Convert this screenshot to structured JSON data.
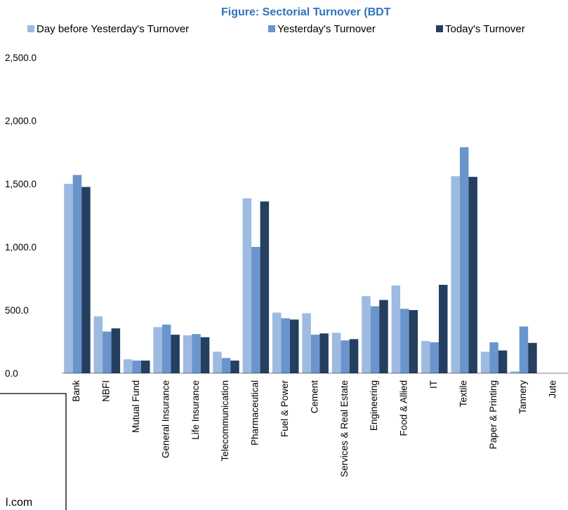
{
  "chart_data": {
    "type": "bar",
    "title": "Figure: Sectorial Turnover (BDT",
    "categories": [
      "Bank",
      "NBFI",
      "Mutual Fund",
      "General Insurance",
      "Life Insurance",
      "Telecommunication",
      "Pharmaceutical",
      "Fuel & Power",
      "Cement",
      "Services & Real Estate",
      "Engineering",
      "Food & Allied",
      "IT",
      "Textile",
      "Paper & Printing",
      "Tannery",
      "Jute"
    ],
    "series": [
      {
        "name": "Day before Yesterday's Turnover",
        "color": "#9dbbe0",
        "values": [
          1500,
          450,
          110,
          365,
          300,
          170,
          1385,
          480,
          475,
          320,
          610,
          695,
          255,
          1560,
          170,
          15,
          0
        ]
      },
      {
        "name": "Yesterday's Turnover",
        "color": "#6a95cc",
        "values": [
          1570,
          330,
          100,
          385,
          310,
          120,
          1000,
          435,
          305,
          260,
          530,
          510,
          245,
          1790,
          245,
          370,
          0
        ]
      },
      {
        "name": "Today's Turnover",
        "color": "#243f60",
        "values": [
          1475,
          355,
          100,
          305,
          285,
          100,
          1360,
          425,
          315,
          270,
          580,
          500,
          700,
          1555,
          180,
          240,
          0
        ]
      }
    ],
    "yticks": [
      "2,500.0",
      "2,000.0",
      "1,500.0",
      "1,000.0",
      "500.0",
      "0.0"
    ],
    "ylim": [
      0,
      2500
    ],
    "legend_position": "top",
    "grid": false
  },
  "footer": {
    "text": "l.com"
  }
}
